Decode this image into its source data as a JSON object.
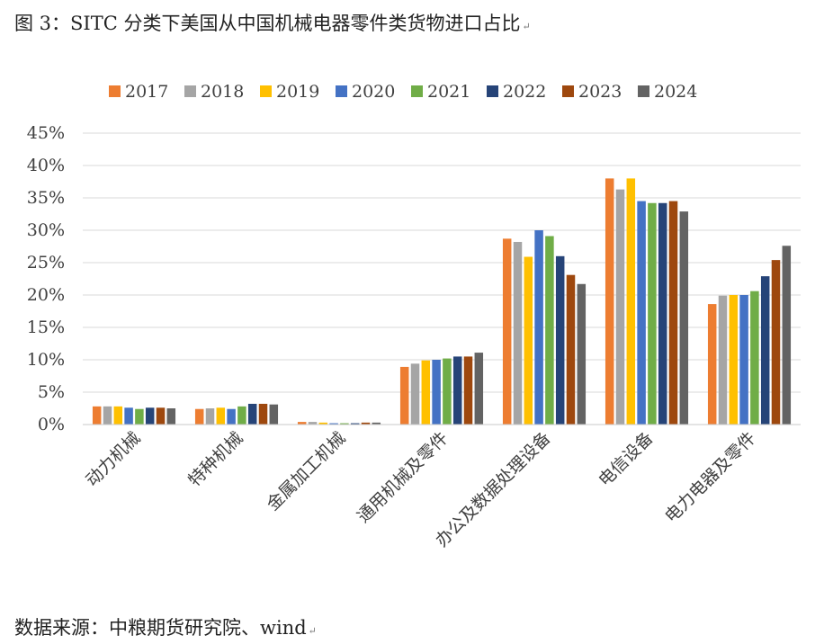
{
  "figure": {
    "title": "图 3：SITC 分类下美国从中国机械电器零件类货物进口占比",
    "source": "数据来源：中粮期货研究院、wind",
    "paragraph_mark": "↵"
  },
  "chart_data": {
    "type": "bar",
    "title": "",
    "xlabel": "",
    "ylabel": "",
    "ylim": [
      0,
      45
    ],
    "y_unit": "%",
    "yticks": [
      "0%",
      "5%",
      "10%",
      "15%",
      "20%",
      "25%",
      "30%",
      "35%",
      "40%",
      "45%"
    ],
    "grid": true,
    "legend_position": "top",
    "categories": [
      "动力机械",
      "特种机械",
      "金属加工机械",
      "通用机械及零件",
      "办公及数据处理设备",
      "电信设备",
      "电力电器及零件"
    ],
    "series": [
      {
        "name": "2017",
        "color": "#ED7D31",
        "values": [
          2.8,
          2.4,
          0.4,
          8.9,
          28.7,
          38.0,
          18.6
        ]
      },
      {
        "name": "2018",
        "color": "#A5A5A5",
        "values": [
          2.8,
          2.5,
          0.4,
          9.4,
          28.2,
          36.3,
          19.9
        ]
      },
      {
        "name": "2019",
        "color": "#FFC000",
        "values": [
          2.8,
          2.6,
          0.3,
          9.9,
          25.9,
          38.0,
          20.0
        ]
      },
      {
        "name": "2020",
        "color": "#4472C4",
        "values": [
          2.6,
          2.4,
          0.2,
          10.0,
          30.0,
          34.5,
          20.0
        ]
      },
      {
        "name": "2021",
        "color": "#70AD47",
        "values": [
          2.4,
          2.8,
          0.2,
          10.2,
          29.1,
          34.2,
          20.6
        ]
      },
      {
        "name": "2022",
        "color": "#264478",
        "values": [
          2.6,
          3.2,
          0.2,
          10.5,
          26.0,
          34.2,
          22.9
        ]
      },
      {
        "name": "2023",
        "color": "#9E480E",
        "values": [
          2.6,
          3.2,
          0.3,
          10.5,
          23.1,
          34.5,
          25.4
        ]
      },
      {
        "name": "2024",
        "color": "#636363",
        "values": [
          2.5,
          3.1,
          0.3,
          11.1,
          21.7,
          32.9,
          27.6
        ]
      }
    ]
  }
}
